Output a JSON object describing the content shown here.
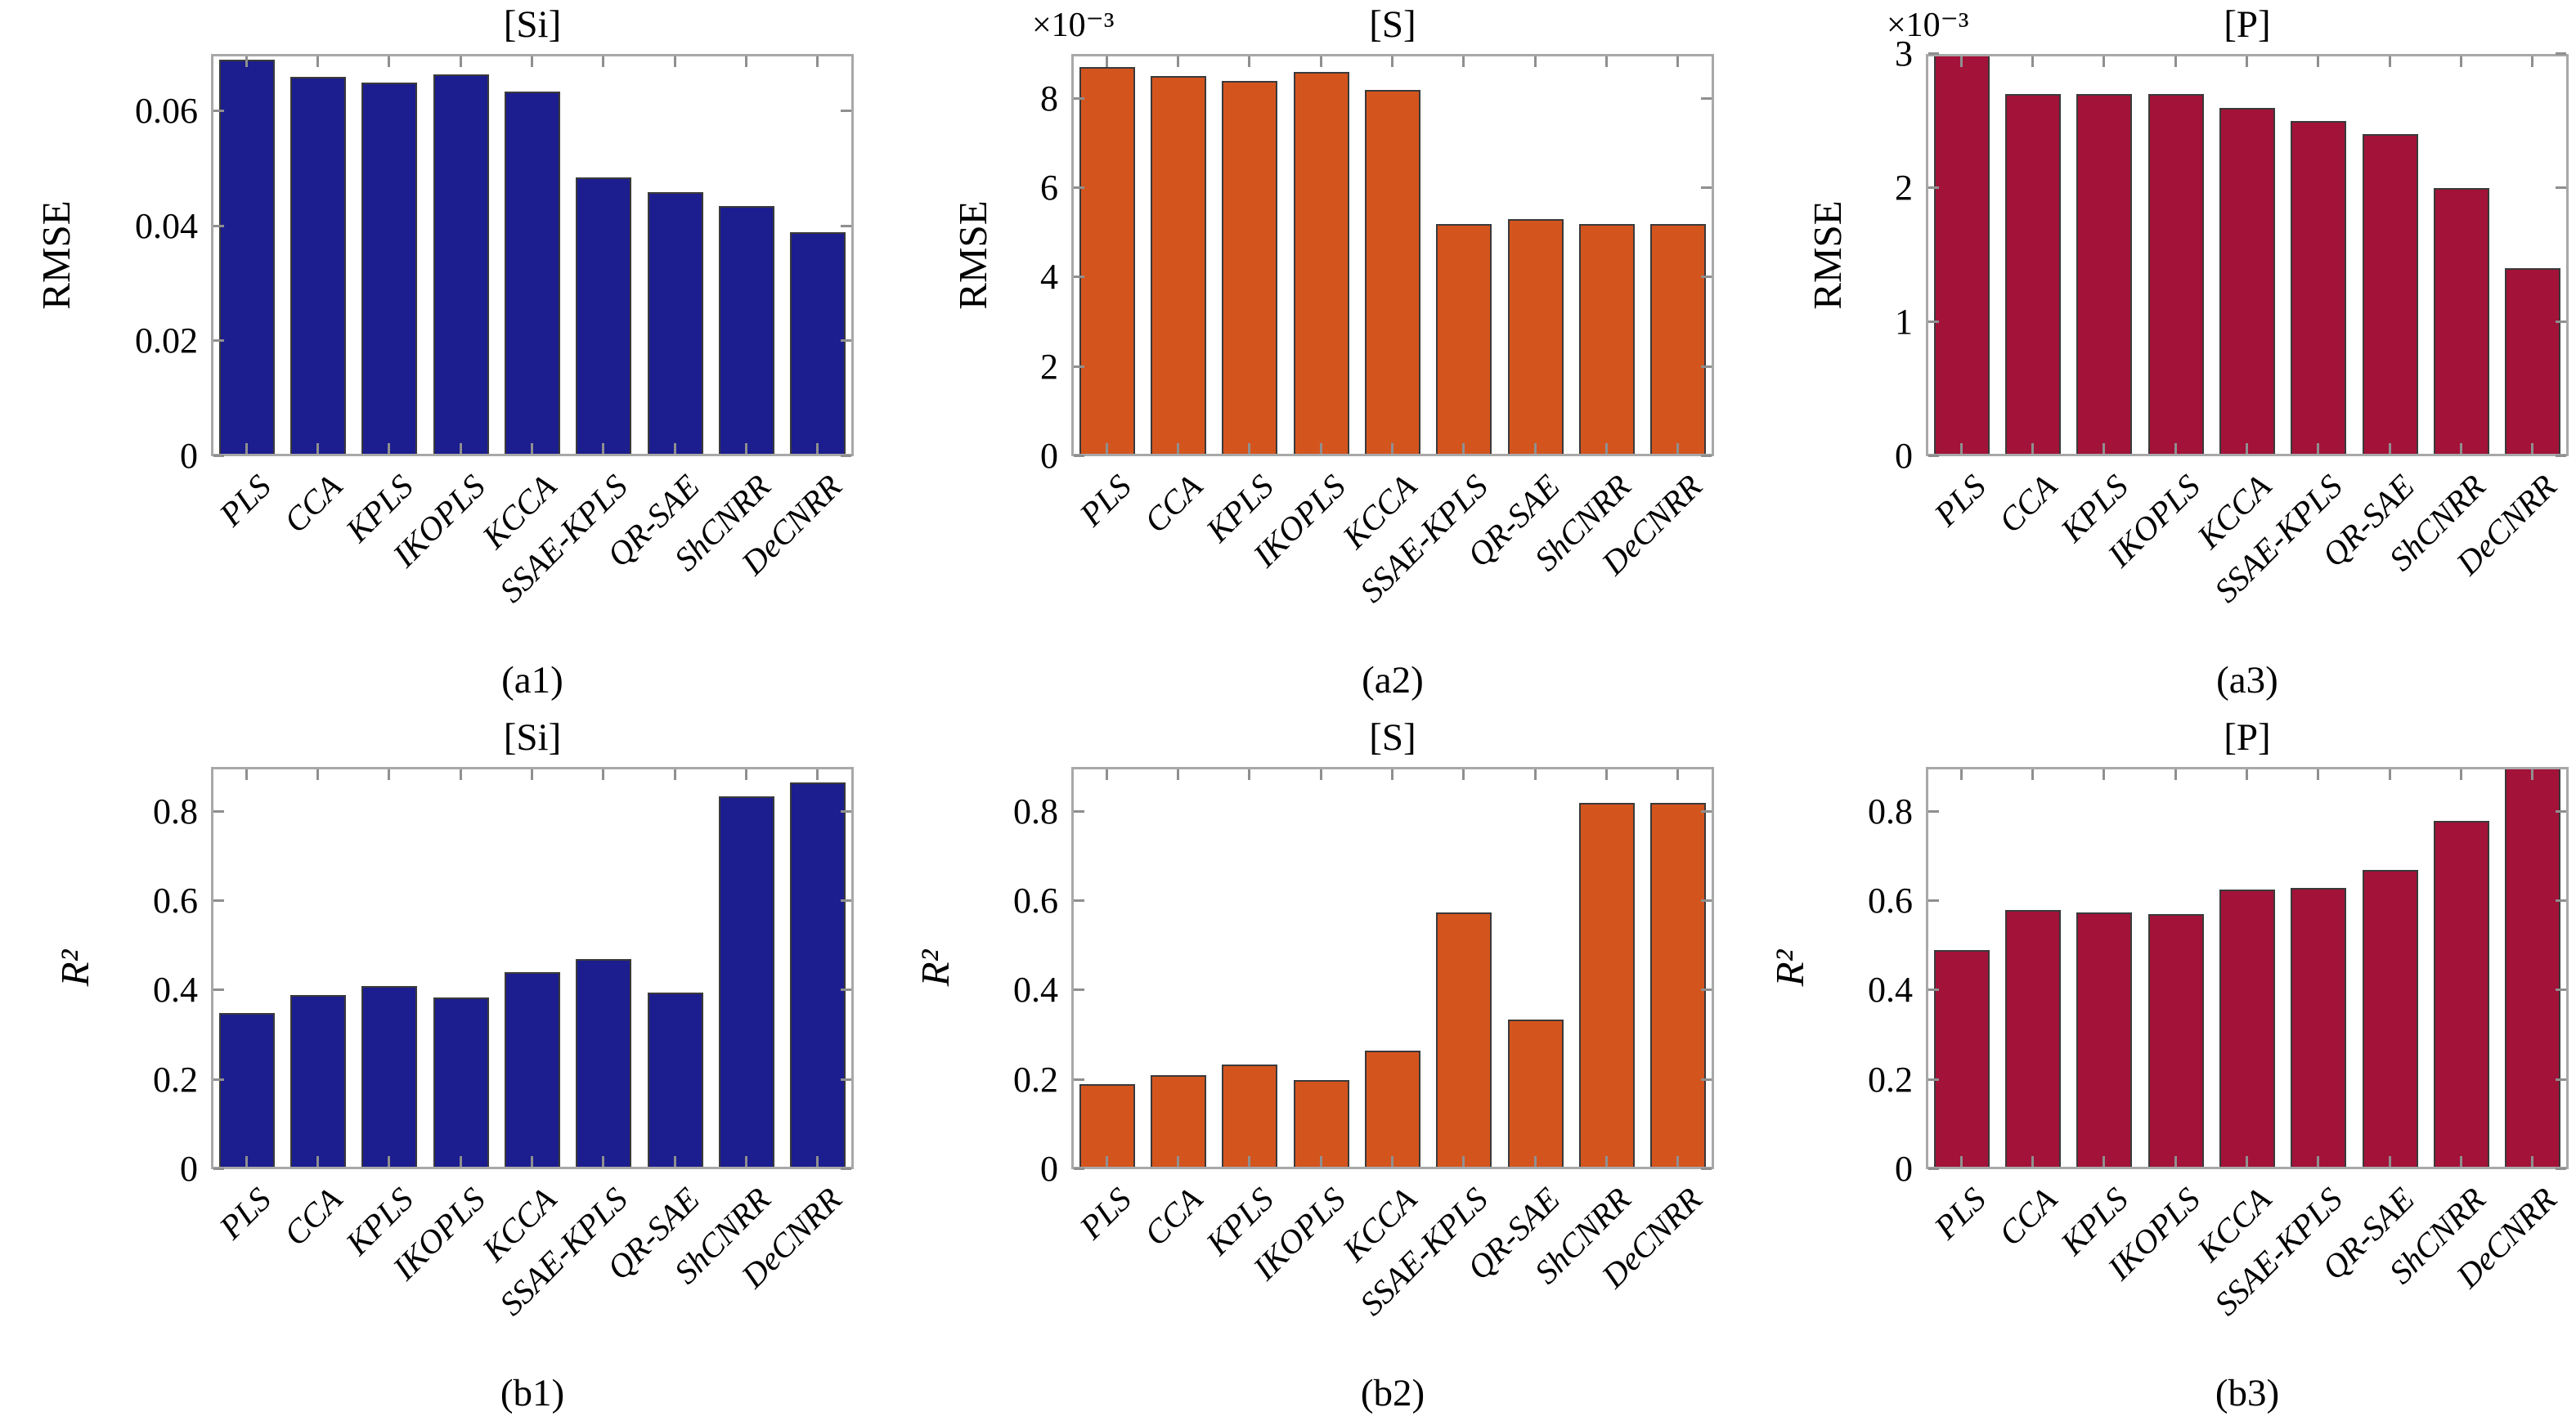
{
  "figure": {
    "description": "Comparison of regression methods: RMSE (top row) and R-squared (bottom row) for [Si], [S] and [P] content prediction"
  },
  "chart_data": {
    "type": "bar",
    "categories": [
      "PLS",
      "CCA",
      "KPLS",
      "IKOPLS",
      "KCCA",
      "SSAE-KPLS",
      "QR-SAE",
      "ShCNRR",
      "DeCNRR"
    ],
    "xlabel": "",
    "grid": false,
    "legend": "none",
    "charts": [
      {
        "id": "a1",
        "title": "[Si]",
        "ylabel": "RMSE",
        "ylabel_italic": false,
        "caption": "(a1)",
        "scale_label": "",
        "bar_color": "#1c1d8e",
        "ylim": [
          0,
          0.07
        ],
        "yticks": [
          "0",
          "0.02",
          "0.04",
          "0.06"
        ],
        "ytick_values": [
          0,
          0.02,
          0.04,
          0.06
        ],
        "values": [
          0.069,
          0.066,
          0.065,
          0.0665,
          0.0635,
          0.0485,
          0.046,
          0.0435,
          0.039
        ]
      },
      {
        "id": "a2",
        "title": "[S]",
        "ylabel": "RMSE",
        "ylabel_italic": false,
        "caption": "(a2)",
        "scale_label": "×10⁻³",
        "bar_color": "#d4541e",
        "ylim": [
          0,
          9
        ],
        "yticks": [
          "0",
          "2",
          "4",
          "6",
          "8"
        ],
        "ytick_values": [
          0,
          2,
          4,
          6,
          8
        ],
        "values": [
          8.7,
          8.5,
          8.4,
          8.6,
          8.2,
          5.2,
          5.3,
          5.2,
          5.2
        ]
      },
      {
        "id": "a3",
        "title": "[P]",
        "ylabel": "RMSE",
        "ylabel_italic": false,
        "caption": "(a3)",
        "scale_label": "×10⁻³",
        "bar_color": "#a31239",
        "ylim": [
          0,
          3
        ],
        "yticks": [
          "0",
          "1",
          "2",
          "3"
        ],
        "ytick_values": [
          0,
          1,
          2,
          3
        ],
        "values": [
          3.0,
          2.7,
          2.7,
          2.7,
          2.6,
          2.5,
          2.4,
          2.0,
          1.4
        ]
      },
      {
        "id": "b1",
        "title": "[Si]",
        "ylabel": "R²",
        "ylabel_italic": true,
        "caption": "(b1)",
        "scale_label": "",
        "bar_color": "#1c1d8e",
        "ylim": [
          0,
          0.9
        ],
        "yticks": [
          "0",
          "0.2",
          "0.4",
          "0.6",
          "0.8"
        ],
        "ytick_values": [
          0,
          0.2,
          0.4,
          0.6,
          0.8
        ],
        "values": [
          0.35,
          0.39,
          0.41,
          0.385,
          0.44,
          0.47,
          0.395,
          0.835,
          0.865
        ]
      },
      {
        "id": "b2",
        "title": "[S]",
        "ylabel": "R²",
        "ylabel_italic": true,
        "caption": "(b2)",
        "scale_label": "",
        "bar_color": "#d4541e",
        "ylim": [
          0,
          0.9
        ],
        "yticks": [
          "0",
          "0.2",
          "0.4",
          "0.6",
          "0.8"
        ],
        "ytick_values": [
          0,
          0.2,
          0.4,
          0.6,
          0.8
        ],
        "values": [
          0.19,
          0.21,
          0.235,
          0.2,
          0.265,
          0.575,
          0.335,
          0.82,
          0.82
        ]
      },
      {
        "id": "b3",
        "title": "[P]",
        "ylabel": "R²",
        "ylabel_italic": true,
        "caption": "(b3)",
        "scale_label": "",
        "bar_color": "#a31239",
        "ylim": [
          0,
          0.9
        ],
        "yticks": [
          "0",
          "0.2",
          "0.4",
          "0.6",
          "0.8"
        ],
        "ytick_values": [
          0,
          0.2,
          0.4,
          0.6,
          0.8
        ],
        "values": [
          0.49,
          0.58,
          0.575,
          0.57,
          0.625,
          0.63,
          0.67,
          0.78,
          0.9
        ]
      }
    ]
  }
}
